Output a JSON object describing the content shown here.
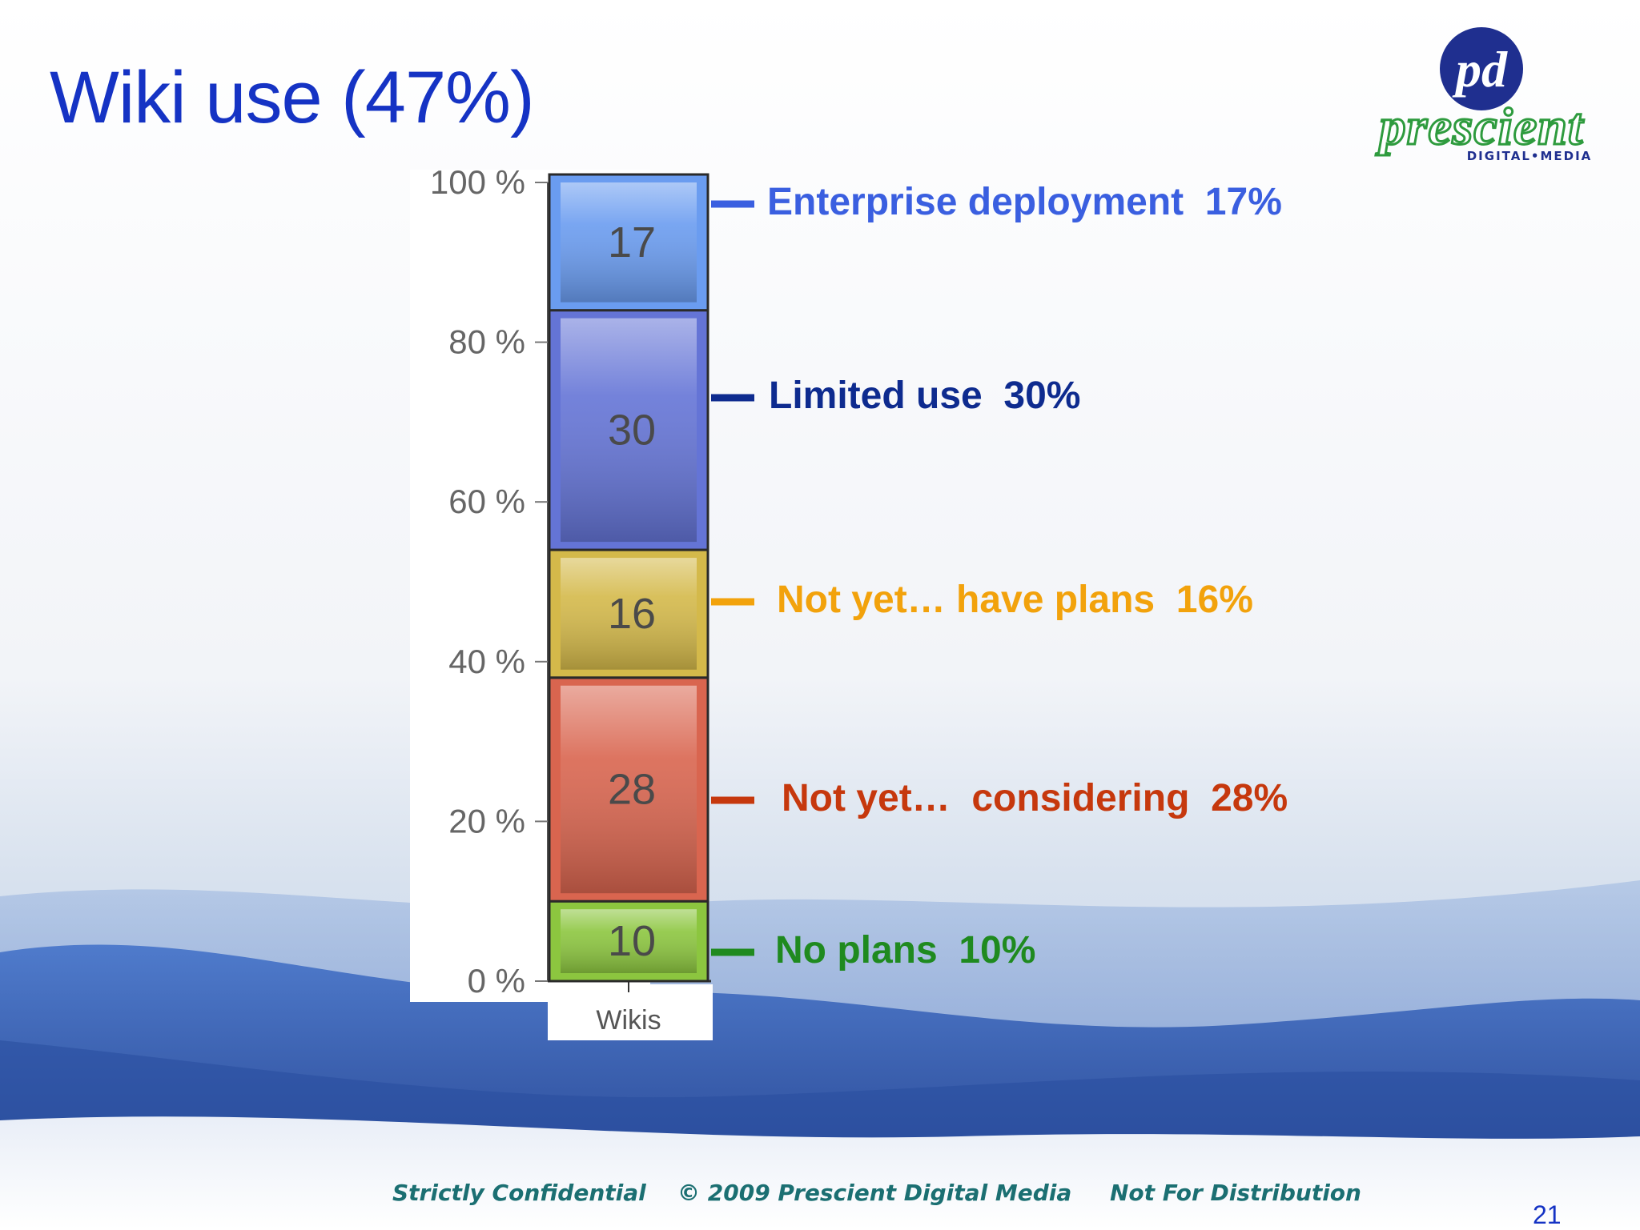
{
  "slide": {
    "title": "Wiki use (47%)",
    "page_number": "21"
  },
  "logo": {
    "monogram": "pd",
    "wordmark": "prescient",
    "tagline": "DIGITAL•MEDIA"
  },
  "footer": {
    "left": "Strictly Confidential",
    "middle": "© 2009 Prescient Digital Media",
    "right": "Not For Distribution"
  },
  "chart_data": {
    "type": "bar",
    "stacked": true,
    "categories": [
      "Wikis"
    ],
    "series": [
      {
        "name": "No plans",
        "values": [
          10
        ],
        "color": "#8cc63f"
      },
      {
        "name": "Not yet…  considering",
        "values": [
          28
        ],
        "color": "#d9654f"
      },
      {
        "name": "Not yet… have plans",
        "values": [
          16
        ],
        "color": "#d4b94a"
      },
      {
        "name": "Limited use",
        "values": [
          30
        ],
        "color": "#6474d6"
      },
      {
        "name": "Enterprise deployment",
        "values": [
          17
        ],
        "color": "#6a9cf0"
      }
    ],
    "ylim": [
      0,
      100
    ],
    "yticks": [
      "0 %",
      "20 %",
      "40 %",
      "60 %",
      "80 %",
      "100 %"
    ],
    "callouts": [
      {
        "text": "Enterprise deployment  17%",
        "color": "#3a5fe0"
      },
      {
        "text": "Limited use  30%",
        "color": "#0e2b8f"
      },
      {
        "text": "Not yet… have plans  16%",
        "color": "#f2a20c"
      },
      {
        "text": "Not yet…  considering  28%",
        "color": "#c6380d"
      },
      {
        "text": "No plans  10%",
        "color": "#1f8a1f"
      }
    ]
  }
}
